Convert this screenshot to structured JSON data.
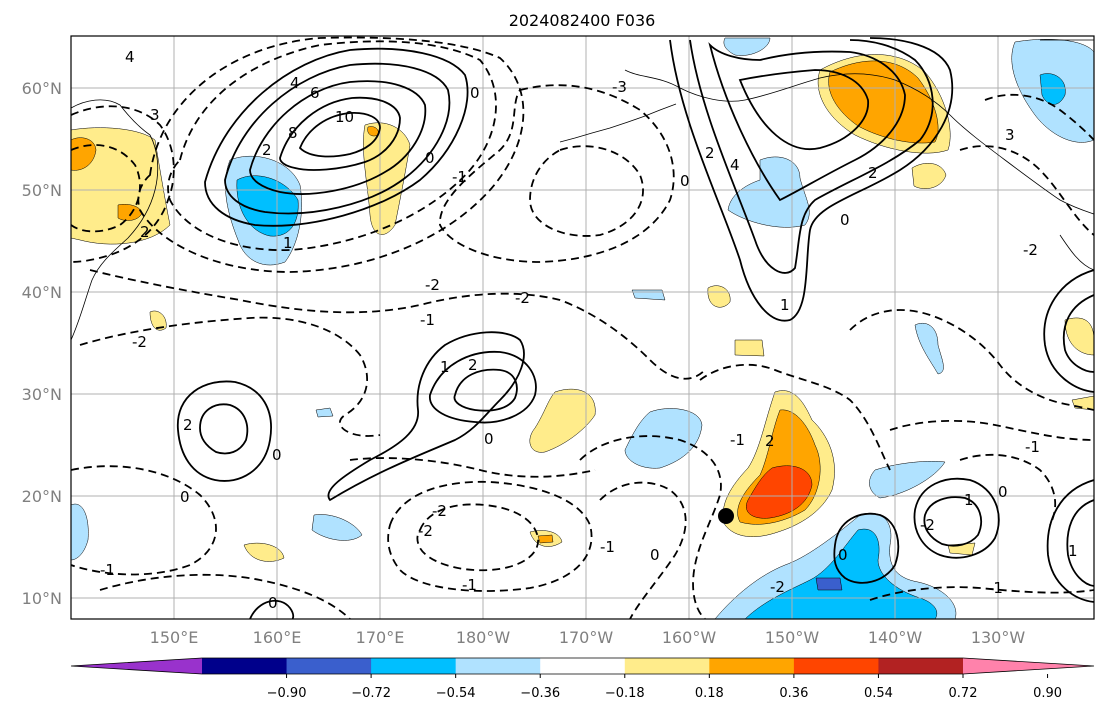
{
  "title": "2024082400 F036",
  "lat_labels": [
    "60°N",
    "50°N",
    "40°N",
    "30°N",
    "20°N",
    "10°N"
  ],
  "lon_labels": [
    "150°E",
    "160°E",
    "170°E",
    "180°W",
    "170°W",
    "160°W",
    "150°W",
    "140°W",
    "130°W"
  ],
  "colorbar": {
    "ticks": [
      "−0.90",
      "−0.72",
      "−0.54",
      "−0.36",
      "−0.18",
      "0.18",
      "0.36",
      "0.54",
      "0.72",
      "0.90"
    ],
    "colors": [
      "#9932cc",
      "#00008b",
      "#3a5fcd",
      "#00bfff",
      "#b0e2ff",
      "#ffffff",
      "#ffec8b",
      "#ffa500",
      "#ff4500",
      "#b22222",
      "#ff82ab"
    ]
  },
  "contour_labels": [
    "4",
    "3",
    "2",
    "0",
    "10",
    "8",
    "6",
    "4",
    "2",
    "1",
    "0",
    "-1",
    "-3",
    "-2",
    "-1",
    "-2",
    "-2",
    "-1",
    "1",
    "2",
    "0",
    "2",
    "0",
    "-2",
    "-1",
    "-1",
    "-2",
    "0",
    "0",
    "-2",
    "2",
    "0",
    "-1",
    "1",
    "2",
    "0",
    "1",
    "-1",
    "-2",
    "3",
    "0",
    "4",
    "2",
    "0",
    "-2",
    "-1",
    "1",
    "0"
  ],
  "marker": {
    "label": "point-marker"
  }
}
